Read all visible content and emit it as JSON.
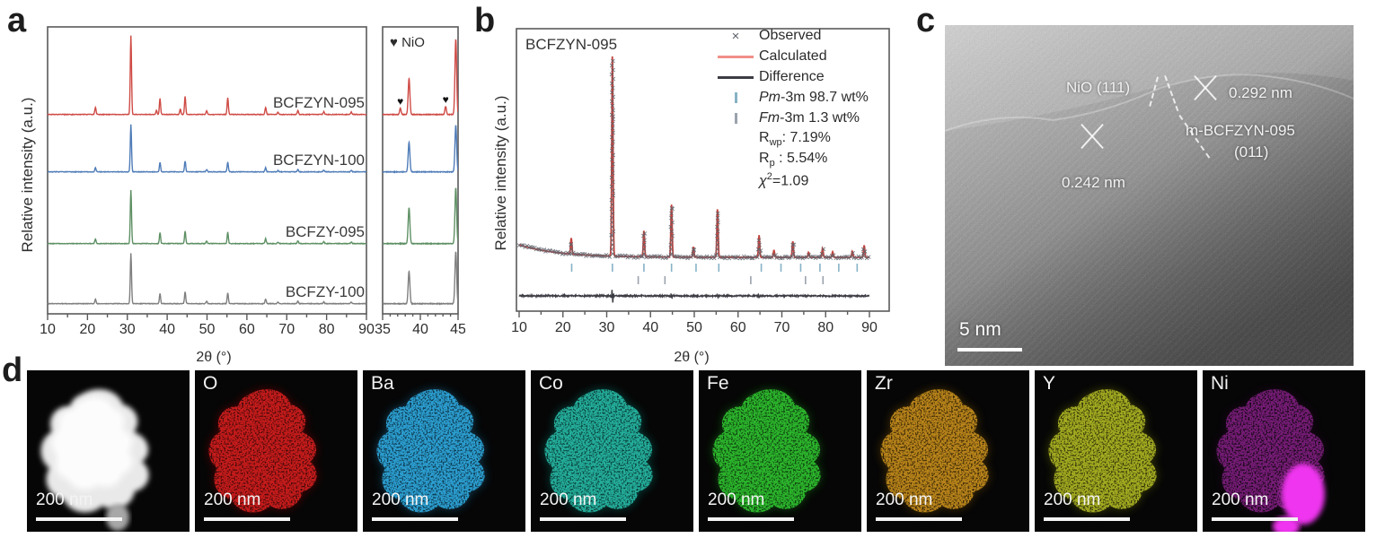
{
  "panel_a": {
    "label": "a",
    "ylabel": "Relative intensity (a.u.)",
    "xlabel": "2θ (°)",
    "x_ticks": [
      10,
      20,
      30,
      40,
      50,
      60,
      70,
      80,
      90
    ],
    "inset_x_ticks": [
      35,
      40,
      45
    ],
    "nio_legend": "♥ NiO",
    "heart_glyph": "♥",
    "series": [
      {
        "name": "BCFZYN-095",
        "color": "#cf4b45",
        "scale": 1.0,
        "has_nio": true,
        "inset_heights": [
          40,
          84
        ]
      },
      {
        "name": "BCFZYN-100",
        "color": "#4f7cb8",
        "scale": 0.6,
        "has_nio": false,
        "inset_heights": [
          33,
          52
        ]
      },
      {
        "name": "BCFZY-095",
        "color": "#5e9064",
        "scale": 0.68,
        "has_nio": false,
        "inset_heights": [
          40,
          62
        ]
      },
      {
        "name": "BCFZY-100",
        "color": "#7f7f7f",
        "scale": 0.64,
        "has_nio": false,
        "inset_heights": [
          36,
          58
        ]
      }
    ]
  },
  "panel_b": {
    "label": "b",
    "sample": "BCFZYN-095",
    "ylabel": "Relative intensity (a.u.)",
    "xlabel": "2θ (°)",
    "x_ticks": [
      10,
      20,
      30,
      40,
      50,
      60,
      70,
      80,
      90
    ],
    "colors": {
      "calculated": "#c2443e",
      "calculated_legend": "#ef8f88",
      "observed": "#5d616b",
      "difference": "#3c3c44",
      "pm3m_tick": "#86b2c6",
      "fm3m_tick": "#9aa2ac"
    },
    "legend_rows": [
      {
        "marker": "x-cross",
        "parts": [
          {
            "t": "Observed"
          }
        ]
      },
      {
        "marker": "line-red",
        "parts": [
          {
            "t": "Calculated"
          }
        ]
      },
      {
        "marker": "line-dark",
        "parts": [
          {
            "t": "Difference"
          }
        ]
      },
      {
        "marker": "tick-blue",
        "parts": [
          {
            "t": "Pm",
            "italic": true
          },
          {
            "t": "-3m 98.7 wt%"
          }
        ]
      },
      {
        "marker": "tick-gray",
        "parts": [
          {
            "t": "Fm",
            "italic": true
          },
          {
            "t": "-3m 1.3 wt%"
          }
        ]
      },
      {
        "marker": "none",
        "parts": [
          {
            "t": "R"
          },
          {
            "t": "wp",
            "sub": true
          },
          {
            "t": ": 7.19%"
          }
        ]
      },
      {
        "marker": "none",
        "parts": [
          {
            "t": "R"
          },
          {
            "t": "p",
            "sub": true
          },
          {
            "t": " : 5.54%"
          }
        ]
      },
      {
        "marker": "none",
        "parts": [
          {
            "t": "χ",
            "italic": true
          },
          {
            "t": "2",
            "sup": true
          },
          {
            "t": "=1.09"
          }
        ]
      }
    ]
  },
  "chart_data": [
    {
      "id": "xrd_comparison",
      "type": "line",
      "xlabel": "2θ (°)",
      "ylabel": "Relative intensity (a.u.)",
      "xlim": [
        10,
        90
      ],
      "inset_xlim": [
        35,
        45
      ],
      "series": [
        "BCFZYN-095",
        "BCFZYN-100",
        "BCFZY-095",
        "BCFZY-100"
      ],
      "perovskite_peaks_2theta": [
        22.0,
        30.9,
        38.2,
        44.5,
        49.9,
        55.2,
        64.7,
        67.8,
        72.8,
        79.3,
        86.2
      ],
      "perovskite_peaks_rel": [
        0.09,
        1.0,
        0.2,
        0.23,
        0.05,
        0.21,
        0.09,
        0.03,
        0.05,
        0.035,
        0.03
      ],
      "nio_peaks_2theta": [
        37.3,
        43.3
      ],
      "nio_peaks_rel": [
        0.05,
        0.07
      ],
      "nio_marked_series": "BCFZYN-095",
      "inset_peaks_2theta": [
        38.5,
        44.7
      ],
      "inset_nio_heights": [
        7,
        9
      ]
    },
    {
      "id": "rietveld_BCFZYN-095",
      "type": "line",
      "sample": "BCFZYN-095",
      "xlabel": "2θ (°)",
      "ylabel": "Relative intensity (a.u.)",
      "xlim": [
        10,
        90
      ],
      "peaks_2theta": [
        21.9,
        31.3,
        38.5,
        44.8,
        49.8,
        55.3,
        64.8,
        68.2,
        72.5,
        76.1,
        79.3,
        81.6,
        86.1,
        88.8
      ],
      "peaks_rel": [
        0.08,
        1.0,
        0.13,
        0.26,
        0.05,
        0.24,
        0.11,
        0.035,
        0.08,
        0.025,
        0.045,
        0.027,
        0.03,
        0.06
      ],
      "pm3m_ticks": [
        22.0,
        31.3,
        38.5,
        44.8,
        50.4,
        55.6,
        65.3,
        69.8,
        74.3,
        78.7,
        83.0,
        87.2
      ],
      "fm3m_ticks": [
        37.2,
        43.3,
        62.9,
        75.4,
        79.4
      ],
      "difference_spikes": [
        {
          "pos": 31.3,
          "amp": 9
        },
        {
          "pos": 44.8,
          "amp": 2.5
        },
        {
          "pos": 55.3,
          "amp": 2.5
        },
        {
          "pos": 64.8,
          "amp": 2
        }
      ],
      "phase1_wt_pct": 98.7,
      "phase2_wt_pct": 1.3,
      "rwp_pct": 7.19,
      "rp_pct": 5.54,
      "chi2": 1.09
    }
  ],
  "panel_c": {
    "label": "c",
    "annotations": {
      "nio_plane": "NiO (111)",
      "d_spacing_1": "0.292 nm",
      "phase_name": "m-BCFZYN-095",
      "phase_plane": "(011)",
      "d_spacing_2": "0.242 nm"
    },
    "scale_bar": "5 nm"
  },
  "panel_d": {
    "label": "d",
    "scale_bar": "200 nm",
    "tiles": [
      {
        "element": "",
        "kind": "haadf",
        "body": "#e9e9e9",
        "bright": "#ffffff"
      },
      {
        "element": "O",
        "kind": "map",
        "body": "#7e0d0d",
        "bright": "#cf1f1f"
      },
      {
        "element": "Ba",
        "kind": "map",
        "body": "#135f85",
        "bright": "#2da5d8"
      },
      {
        "element": "Co",
        "kind": "map",
        "body": "#0f6e63",
        "bright": "#27b5a2"
      },
      {
        "element": "Fe",
        "kind": "map",
        "body": "#156e15",
        "bright": "#2fbe2f"
      },
      {
        "element": "Zr",
        "kind": "map",
        "body": "#6e4a08",
        "bright": "#c08a1a"
      },
      {
        "element": "Y",
        "kind": "map",
        "body": "#5f6410",
        "bright": "#aab224"
      },
      {
        "element": "Ni",
        "kind": "map-ni",
        "body": "#4a0b4a",
        "bright": "#c32ec3",
        "blob": "#f036f0"
      }
    ]
  }
}
